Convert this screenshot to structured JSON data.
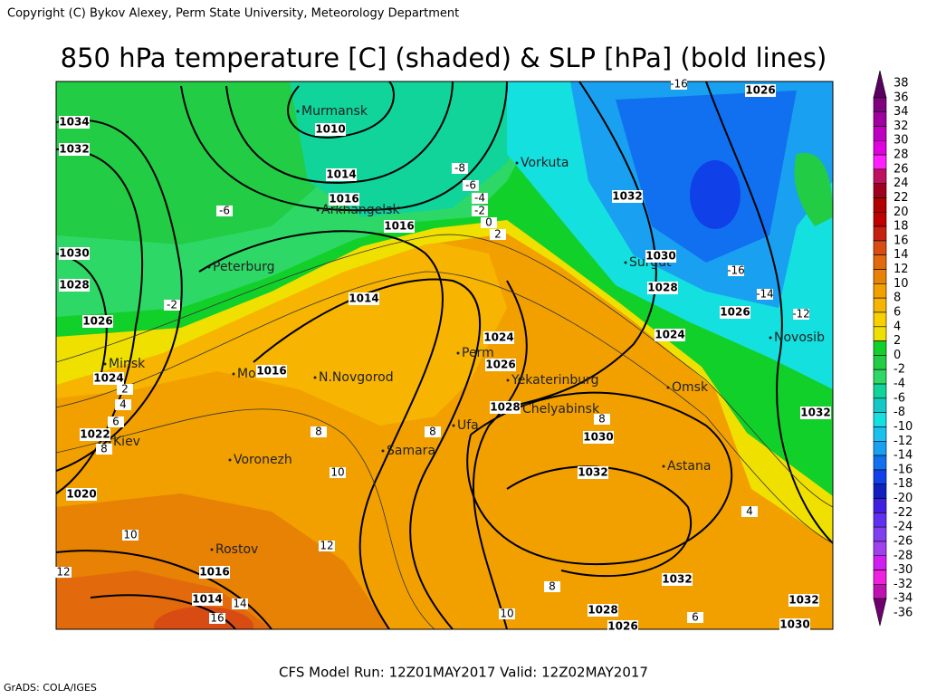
{
  "header": {
    "copyright": "Copyright (C) Bykov Alexey, Perm State University, Meteorology Department",
    "title": "850 hPa temperature [C] (shaded) & SLP [hPa] (bold lines)"
  },
  "cities": [
    "Murmansk",
    "Arkhangelsk",
    "Vorkuta",
    "Surgut",
    "Peterburg",
    "Minsk",
    "Moscow",
    "N.Novgorod",
    "Perm",
    "Yekaterinburg",
    "Omsk",
    "Novosib",
    "Chelyabinsk",
    "Ufa",
    "Samara",
    "Kiev",
    "Voronezh",
    "Astana",
    "Rostov"
  ],
  "isobar_labels": [
    1034,
    1032,
    1030,
    1028,
    1026,
    1024,
    1022,
    1020,
    1010,
    1014,
    1016,
    1016,
    1014,
    1016,
    1024,
    1026,
    1028,
    1030,
    1032,
    1032,
    1030,
    1028,
    1026,
    1024,
    1026,
    1032,
    1032,
    1032,
    1030,
    1028,
    1026,
    1016,
    1014
  ],
  "temperature_labels": [
    -8,
    -6,
    -4,
    -2,
    0,
    2,
    -6,
    -2,
    -16,
    -14,
    -12,
    8,
    8,
    10,
    12,
    10,
    12,
    14,
    16,
    2,
    4,
    6,
    8,
    8,
    4,
    6,
    8,
    10,
    -16
  ],
  "colorbar": {
    "labels": [
      38,
      36,
      34,
      32,
      30,
      28,
      26,
      24,
      22,
      20,
      18,
      16,
      14,
      12,
      10,
      8,
      6,
      4,
      2,
      0,
      -2,
      -4,
      -6,
      -8,
      -10,
      -12,
      -14,
      -16,
      -18,
      -20,
      -22,
      -24,
      -26,
      -28,
      -30,
      -32,
      -34,
      -36
    ]
  },
  "footer": {
    "run": "CFS Model Run: 12Z01MAY2017 Valid: 12Z02MAY2017",
    "grads": "GrADS: COLA/IGES"
  }
}
